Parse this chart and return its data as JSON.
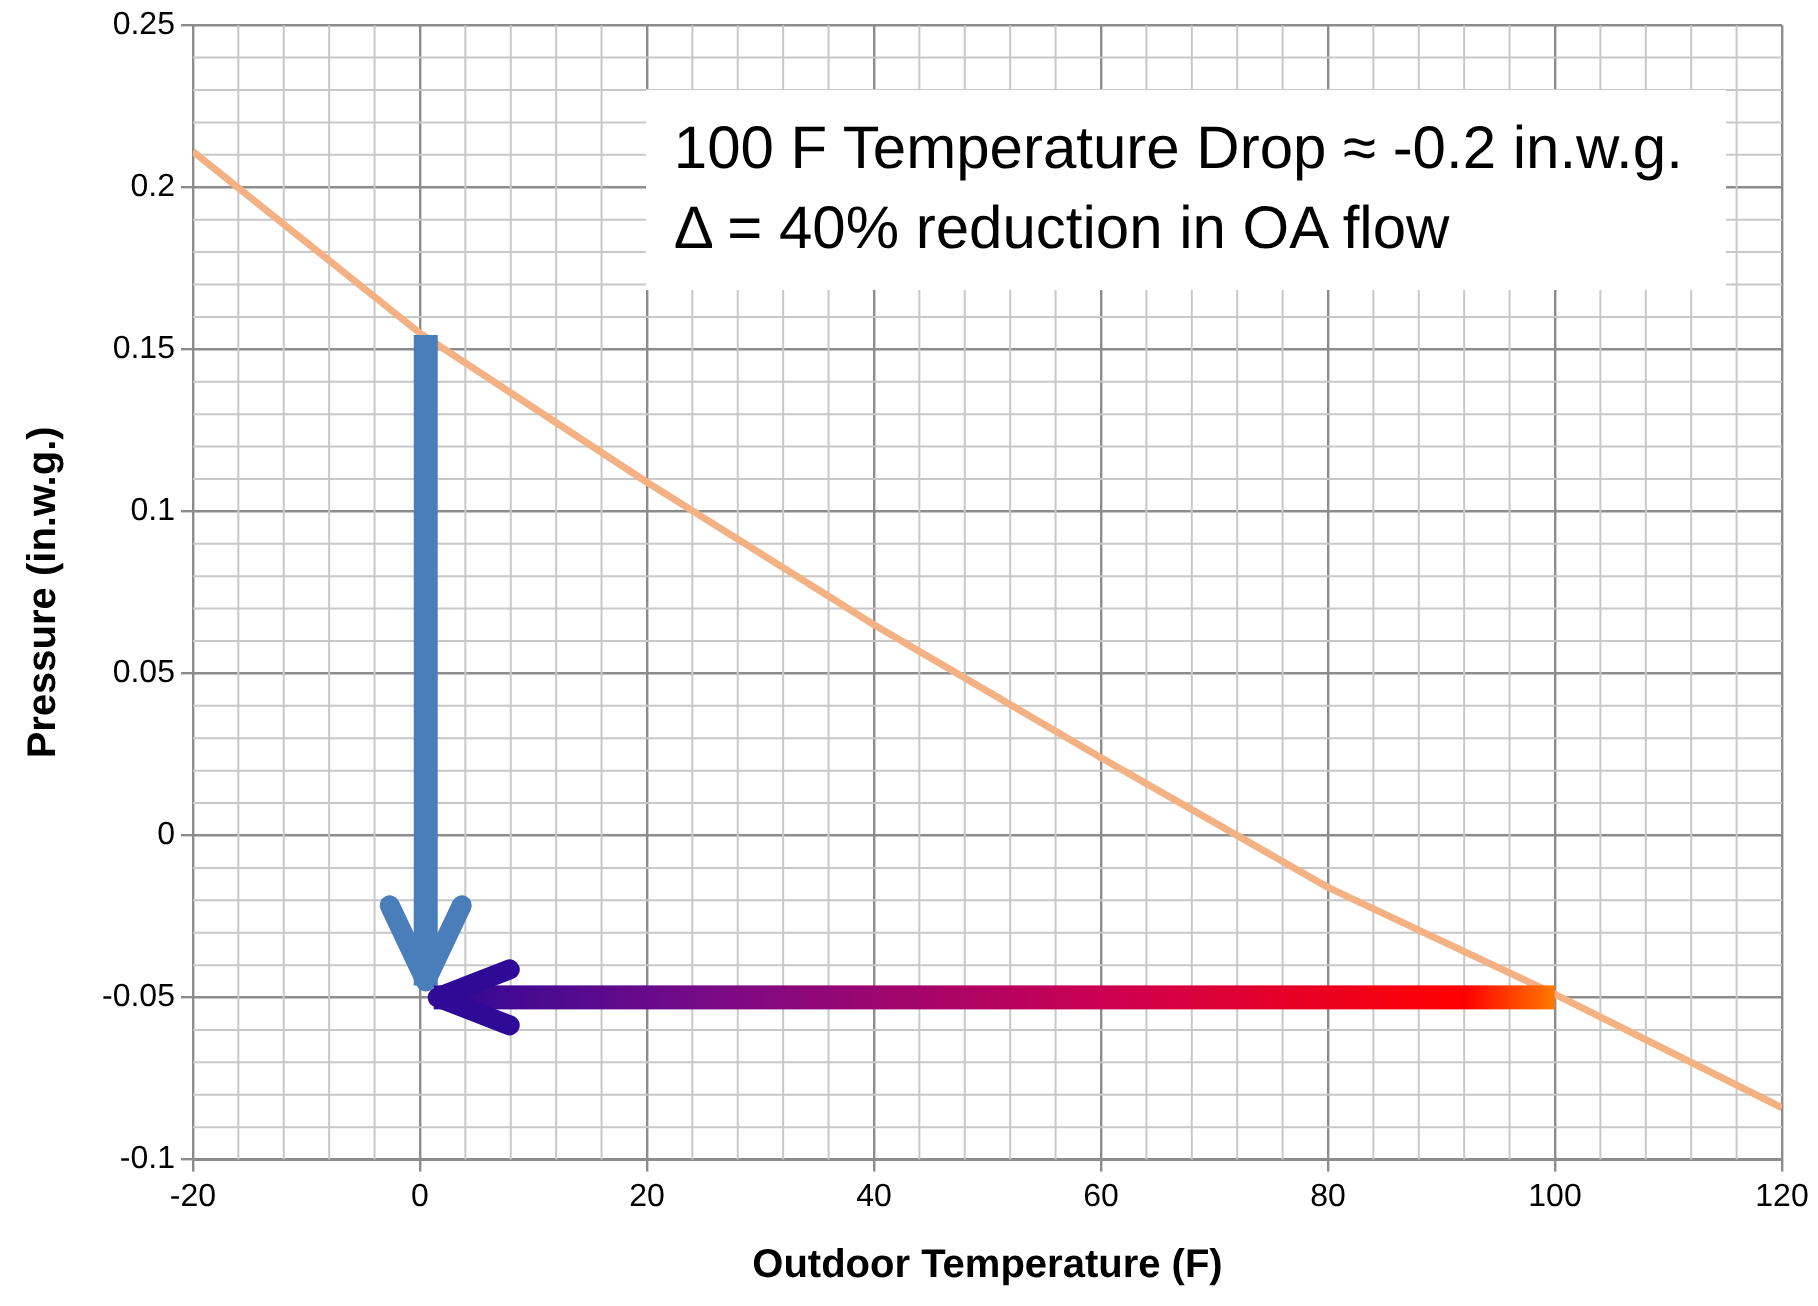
{
  "chart_data": {
    "type": "line",
    "xlabel": "Outdoor Temperature (F)",
    "ylabel": "Pressure (in.w.g.)",
    "x": [
      -20,
      0,
      20,
      40,
      60,
      80,
      100,
      120
    ],
    "series": [
      {
        "color": "#f4b183",
        "values": [
          0.211,
          0.155,
          0.109,
          0.065,
          0.024,
          -0.016,
          -0.049,
          -0.084
        ]
      }
    ],
    "xlim": [
      -20,
      120
    ],
    "xticks": [
      -20,
      0,
      20,
      40,
      60,
      80,
      100,
      120
    ],
    "ylim": [
      -0.1,
      0.25
    ],
    "yticks": [
      -0.1,
      -0.05,
      0,
      0.05,
      0.1,
      0.15,
      0.2,
      0.25
    ],
    "grid": true,
    "legend": false,
    "marker": "none",
    "line_style": "solid",
    "annotations": [
      "100 F Temperature Drop ≈ -0.2 in.w.g. Δ = 40% reduction in OA flow"
    ]
  }
}
